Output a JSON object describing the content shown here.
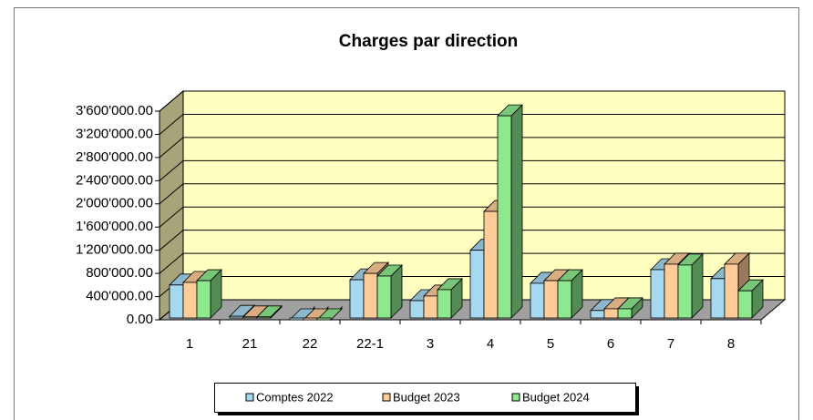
{
  "chart_data": {
    "type": "bar3d",
    "title": "Charges par direction",
    "categories": [
      "1",
      "21",
      "22",
      "22-1",
      "3",
      "4",
      "5",
      "6",
      "7",
      "8"
    ],
    "series": [
      {
        "name": "Comptes 2022",
        "color": "#a6d8f0",
        "values": [
          600000,
          60000,
          0,
          690000,
          330000,
          1200000,
          630000,
          160000,
          865000,
          710000
        ]
      },
      {
        "name": "Budget 2023",
        "color": "#ffcc99",
        "values": [
          645000,
          50000,
          0,
          800000,
          410000,
          1870000,
          675000,
          190000,
          960000,
          960000
        ]
      },
      {
        "name": "Budget 2024",
        "color": "#8ee88e",
        "values": [
          675000,
          50000,
          0,
          755000,
          520000,
          3520000,
          675000,
          190000,
          945000,
          500000
        ]
      }
    ],
    "ylim": [
      0,
      3600000
    ],
    "yticks": [
      {
        "value": 0,
        "label": "0.00"
      },
      {
        "value": 400000,
        "label": "400'000.00"
      },
      {
        "value": 800000,
        "label": "800'000.00"
      },
      {
        "value": 1200000,
        "label": "1'200'000.00"
      },
      {
        "value": 1600000,
        "label": "1'600'000.00"
      },
      {
        "value": 2000000,
        "label": "2'000'000.00"
      },
      {
        "value": 2400000,
        "label": "2'400'000.00"
      },
      {
        "value": 2800000,
        "label": "2'800'000.00"
      },
      {
        "value": 3200000,
        "label": "3'200'000.00"
      },
      {
        "value": 3600000,
        "label": "3'600'000.00"
      }
    ],
    "grid": true,
    "legend": "bottom"
  }
}
